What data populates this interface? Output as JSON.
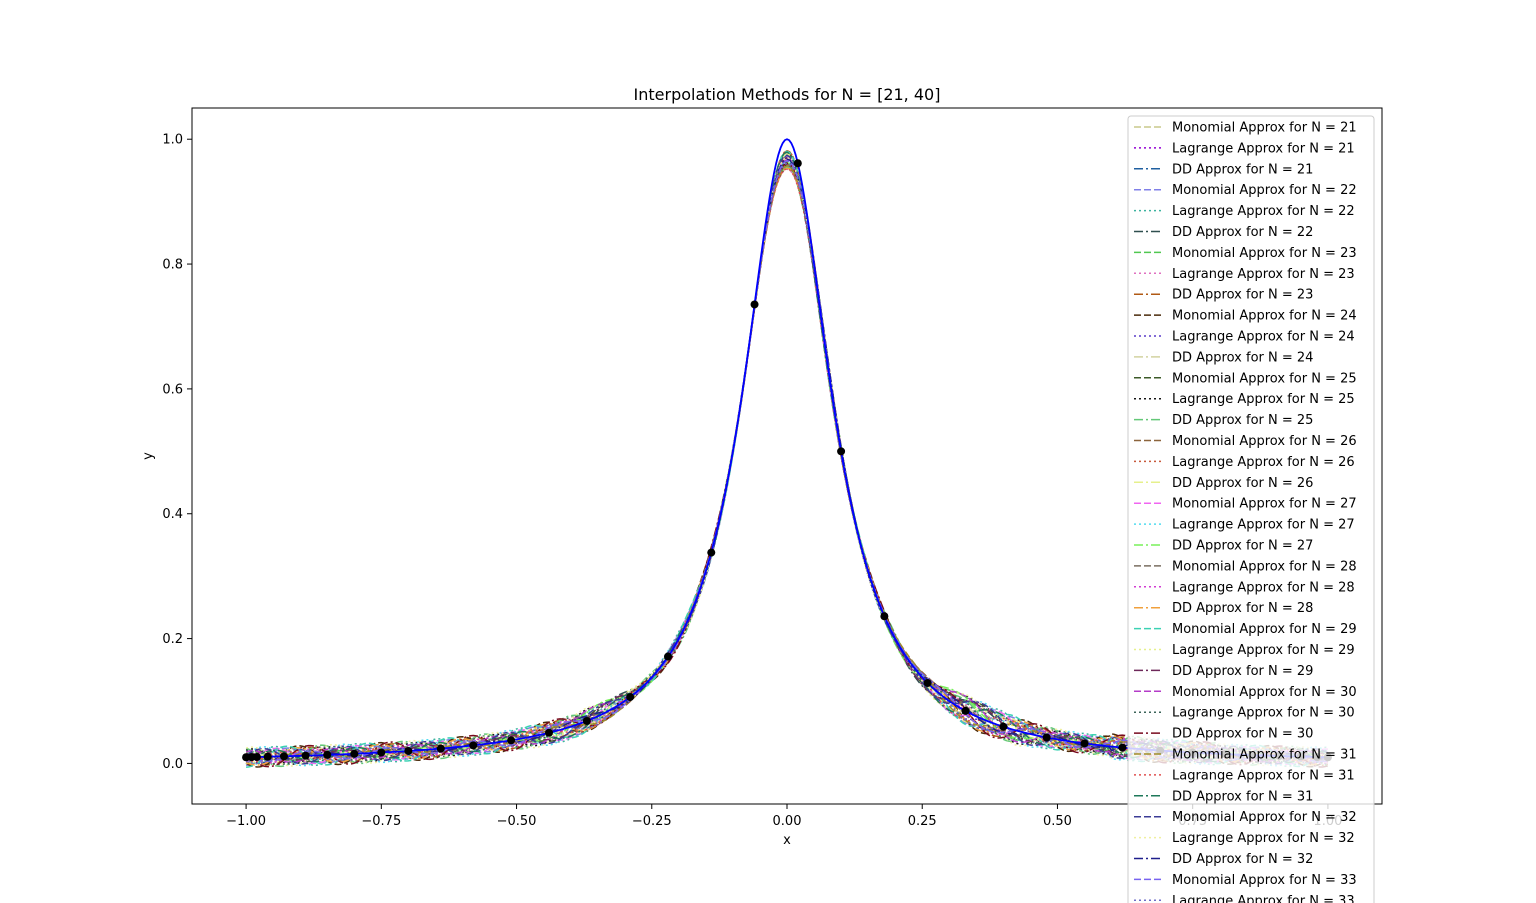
{
  "chart_data": {
    "type": "line",
    "title": "Interpolation Methods for N = [21, 40]",
    "xlabel": "x",
    "ylabel": "y",
    "xlim": [
      -1.1,
      1.1
    ],
    "ylim": [
      -0.065,
      1.05
    ],
    "x_ticks": [
      {
        "value": -1.0,
        "label": "−1.00"
      },
      {
        "value": -0.75,
        "label": "−0.75"
      },
      {
        "value": -0.5,
        "label": "−0.50"
      },
      {
        "value": -0.25,
        "label": "−0.25"
      },
      {
        "value": 0.0,
        "label": "0.00"
      },
      {
        "value": 0.25,
        "label": "0.25"
      },
      {
        "value": 0.5,
        "label": "0.50"
      },
      {
        "value": 0.75,
        "label": "0.75"
      },
      {
        "value": 1.0,
        "label": "1.00"
      }
    ],
    "y_ticks": [
      {
        "value": 0.0,
        "label": "0.0"
      },
      {
        "value": 0.2,
        "label": "0.2"
      },
      {
        "value": 0.4,
        "label": "0.4"
      },
      {
        "value": 0.6,
        "label": "0.6"
      },
      {
        "value": 0.8,
        "label": "0.8"
      },
      {
        "value": 1.0,
        "label": "1.0"
      }
    ],
    "grid": false,
    "legend_position": "right",
    "true_function": {
      "formula": "1/(1+100x^2)",
      "color": "#0000ff"
    },
    "nodes": {
      "color": "#000000",
      "x": [
        -1.0,
        -0.99,
        -0.98,
        -0.96,
        -0.93,
        -0.89,
        -0.85,
        -0.8,
        -0.75,
        -0.7,
        -0.64,
        -0.58,
        -0.51,
        -0.44,
        -0.37,
        -0.29,
        -0.22,
        -0.14,
        -0.06,
        0.02,
        0.1,
        0.18,
        0.26,
        0.33,
        0.4,
        0.48,
        0.55,
        0.62,
        0.69,
        0.75,
        0.81,
        0.86,
        0.91,
        0.95,
        0.98,
        1.0
      ],
      "y": [
        0.0099,
        0.0101,
        0.0103,
        0.0107,
        0.0114,
        0.0125,
        0.0137,
        0.0154,
        0.0175,
        0.02,
        0.0238,
        0.0289,
        0.037,
        0.0491,
        0.068,
        0.1063,
        0.1712,
        0.3378,
        0.7353,
        0.9615,
        0.5,
        0.2358,
        0.1289,
        0.0841,
        0.0588,
        0.0416,
        0.032,
        0.0254,
        0.0206,
        0.0175,
        0.015,
        0.0134,
        0.012,
        0.011,
        0.0103,
        0.0099
      ]
    },
    "series": [
      {
        "name": "Monomial Approx for N = 21",
        "color": "#c8c88c",
        "dash": "dashed"
      },
      {
        "name": "Lagrange Approx for N = 21",
        "color": "#9400d3",
        "dash": "dotted"
      },
      {
        "name": "DD Approx for N = 21",
        "color": "#1f5fa0",
        "dash": "dashdot"
      },
      {
        "name": "Monomial Approx for N = 22",
        "color": "#8080e8",
        "dash": "dashed"
      },
      {
        "name": "Lagrange Approx for N = 22",
        "color": "#3cb4a0",
        "dash": "dotted"
      },
      {
        "name": "DD Approx for N = 22",
        "color": "#2f4f4f",
        "dash": "dashdot"
      },
      {
        "name": "Monomial Approx for N = 23",
        "color": "#50c850",
        "dash": "dashed"
      },
      {
        "name": "Lagrange Approx for N = 23",
        "color": "#e070c0",
        "dash": "dotted"
      },
      {
        "name": "DD Approx for N = 23",
        "color": "#b05a14",
        "dash": "dashdot"
      },
      {
        "name": "Monomial Approx for N = 24",
        "color": "#4a2a0a",
        "dash": "dashed"
      },
      {
        "name": "Lagrange Approx for N = 24",
        "color": "#5a3cc8",
        "dash": "dotted"
      },
      {
        "name": "DD Approx for N = 24",
        "color": "#d2d2a0",
        "dash": "dashdot"
      },
      {
        "name": "Monomial Approx for N = 25",
        "color": "#3c5a28",
        "dash": "dashed"
      },
      {
        "name": "Lagrange Approx for N = 25",
        "color": "#141414",
        "dash": "dotted"
      },
      {
        "name": "DD Approx for N = 25",
        "color": "#64c878",
        "dash": "dashdot"
      },
      {
        "name": "Monomial Approx for N = 26",
        "color": "#8c643c",
        "dash": "dashed"
      },
      {
        "name": "Lagrange Approx for N = 26",
        "color": "#c85a3c",
        "dash": "dotted"
      },
      {
        "name": "DD Approx for N = 26",
        "color": "#e6f08c",
        "dash": "dashdot"
      },
      {
        "name": "Monomial Approx for N = 27",
        "color": "#f064f0",
        "dash": "dashed"
      },
      {
        "name": "Lagrange Approx for N = 27",
        "color": "#50dcf0",
        "dash": "dotted"
      },
      {
        "name": "DD Approx for N = 27",
        "color": "#78f05a",
        "dash": "dashdot"
      },
      {
        "name": "Monomial Approx for N = 28",
        "color": "#7a6e60",
        "dash": "dashed"
      },
      {
        "name": "Lagrange Approx for N = 28",
        "color": "#d23cd2",
        "dash": "dotted"
      },
      {
        "name": "DD Approx for N = 28",
        "color": "#f0a03c",
        "dash": "dashdot"
      },
      {
        "name": "Monomial Approx for N = 29",
        "color": "#3cd2b4",
        "dash": "dashed"
      },
      {
        "name": "Lagrange Approx for N = 29",
        "color": "#e6f08c",
        "dash": "dotted"
      },
      {
        "name": "DD Approx for N = 29",
        "color": "#6e285a",
        "dash": "dashdot"
      },
      {
        "name": "Monomial Approx for N = 30",
        "color": "#b43cc8",
        "dash": "dashed"
      },
      {
        "name": "Lagrange Approx for N = 30",
        "color": "#3c645a",
        "dash": "dotted"
      },
      {
        "name": "DD Approx for N = 30",
        "color": "#780a1e",
        "dash": "dashdot"
      },
      {
        "name": "Monomial Approx for N = 31",
        "color": "#a08c28",
        "dash": "dashed"
      },
      {
        "name": "Lagrange Approx for N = 31",
        "color": "#e05050",
        "dash": "dotted"
      },
      {
        "name": "DD Approx for N = 31",
        "color": "#1e785a",
        "dash": "dashdot"
      },
      {
        "name": "Monomial Approx for N = 32",
        "color": "#3c3c96",
        "dash": "dashed"
      },
      {
        "name": "Lagrange Approx for N = 32",
        "color": "#f0f0a0",
        "dash": "dotted"
      },
      {
        "name": "DD Approx for N = 32",
        "color": "#1e1e8c",
        "dash": "dashdot"
      },
      {
        "name": "Monomial Approx for N = 33",
        "color": "#7864f0",
        "dash": "dashed"
      },
      {
        "name": "Lagrange Approx for N = 33",
        "color": "#6e6ec8",
        "dash": "dotted"
      }
    ]
  }
}
